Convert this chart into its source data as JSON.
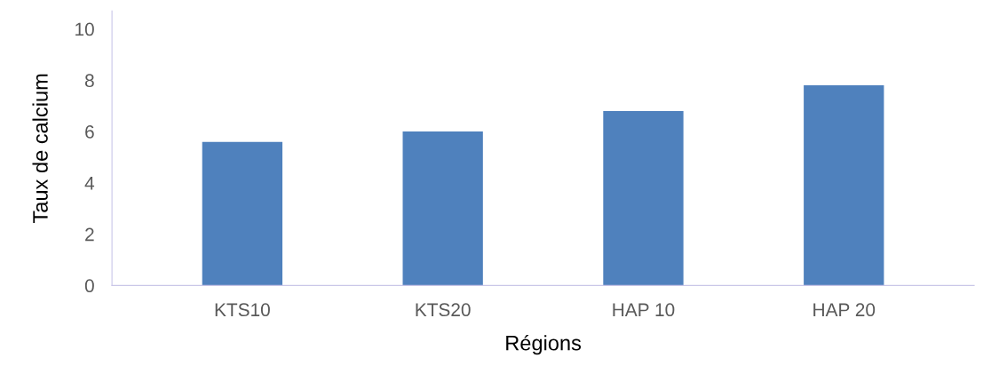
{
  "chart_data": {
    "type": "bar",
    "xlabel": "Régions",
    "ylabel": "Taux de calcium",
    "categories": [
      "KTS10",
      "KTS20",
      "HAP 10",
      "HAP 20"
    ],
    "values": [
      5.6,
      6.0,
      6.8,
      7.8
    ],
    "color": "#4f81bd",
    "ylim": [
      0,
      10.7
    ],
    "yticks": [
      0,
      2,
      4,
      6,
      8,
      10
    ],
    "grid": false,
    "legend": false
  }
}
